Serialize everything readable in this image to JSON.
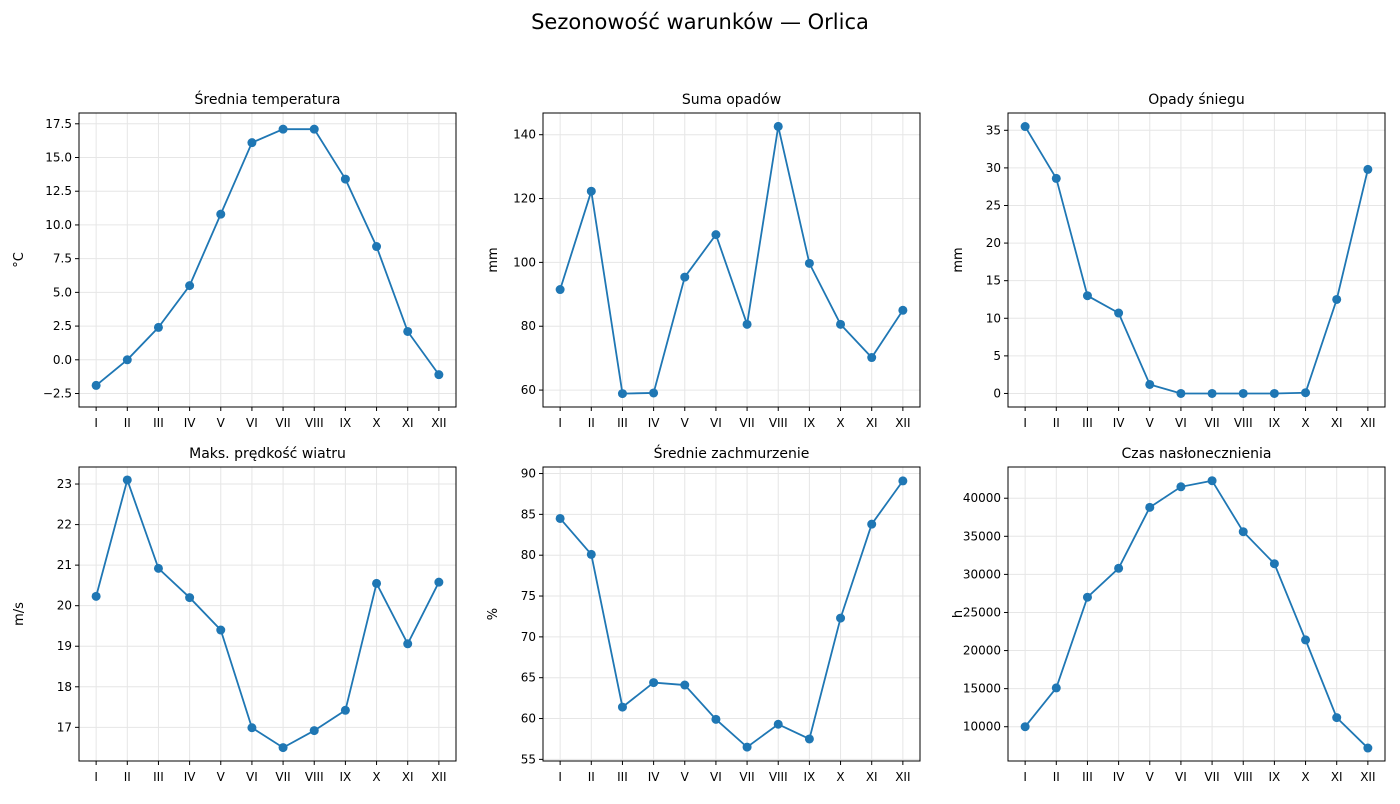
{
  "figure": {
    "title": "Sezonowość warunków — Orlica"
  },
  "colors": {
    "series": "#1f77b4",
    "grid": "#e6e6e6",
    "axis": "#000000"
  },
  "chart_data": [
    {
      "type": "line",
      "title": "Średnia temperatura",
      "xlabel": "",
      "ylabel": "°C",
      "categories": [
        "I",
        "II",
        "III",
        "IV",
        "V",
        "VI",
        "VII",
        "VIII",
        "IX",
        "X",
        "XI",
        "XII"
      ],
      "values": [
        -1.9,
        0.0,
        2.4,
        5.5,
        10.8,
        16.1,
        17.1,
        17.1,
        13.4,
        8.4,
        2.1,
        -1.1
      ],
      "ylim": [
        -3.5,
        18.3
      ],
      "yticks": [
        -2.5,
        0.0,
        2.5,
        5.0,
        7.5,
        10.0,
        12.5,
        15.0,
        17.5
      ],
      "ytick_labels": [
        "−2.5",
        "0.0",
        "2.5",
        "5.0",
        "7.5",
        "10.0",
        "12.5",
        "15.0",
        "17.5"
      ],
      "grid": true
    },
    {
      "type": "line",
      "title": "Suma opadów",
      "xlabel": "",
      "ylabel": "mm",
      "categories": [
        "I",
        "II",
        "III",
        "IV",
        "V",
        "VI",
        "VII",
        "VIII",
        "IX",
        "X",
        "XI",
        "XII"
      ],
      "values": [
        91.5,
        122.3,
        58.9,
        59.1,
        95.4,
        108.7,
        80.6,
        142.6,
        99.7,
        80.6,
        70.2,
        85.0
      ],
      "ylim": [
        54.7,
        146.8
      ],
      "yticks": [
        60,
        80,
        100,
        120,
        140
      ],
      "ytick_labels": [
        "60",
        "80",
        "100",
        "120",
        "140"
      ],
      "grid": true
    },
    {
      "type": "line",
      "title": "Opady śniegu",
      "xlabel": "",
      "ylabel": "mm",
      "categories": [
        "I",
        "II",
        "III",
        "IV",
        "V",
        "VI",
        "VII",
        "VIII",
        "IX",
        "X",
        "XI",
        "XII"
      ],
      "values": [
        35.5,
        28.6,
        13.0,
        10.7,
        1.2,
        0.0,
        0.0,
        0.0,
        0.0,
        0.1,
        12.5,
        29.8
      ],
      "ylim": [
        -1.8,
        37.3
      ],
      "yticks": [
        0,
        5,
        10,
        15,
        20,
        25,
        30,
        35
      ],
      "ytick_labels": [
        "0",
        "5",
        "10",
        "15",
        "20",
        "25",
        "30",
        "35"
      ],
      "grid": true
    },
    {
      "type": "line",
      "title": "Maks. prędkość wiatru",
      "xlabel": "",
      "ylabel": "m/s",
      "categories": [
        "I",
        "II",
        "III",
        "IV",
        "V",
        "VI",
        "VII",
        "VIII",
        "IX",
        "X",
        "XI",
        "XII"
      ],
      "values": [
        20.23,
        23.1,
        20.92,
        20.2,
        19.4,
        16.99,
        16.5,
        16.92,
        17.42,
        20.55,
        19.06,
        20.58
      ],
      "ylim": [
        16.17,
        23.42
      ],
      "yticks": [
        17,
        18,
        19,
        20,
        21,
        22,
        23
      ],
      "ytick_labels": [
        "17",
        "18",
        "19",
        "20",
        "21",
        "22",
        "23"
      ],
      "grid": true
    },
    {
      "type": "line",
      "title": "Średnie zachmurzenie",
      "xlabel": "",
      "ylabel": "%",
      "categories": [
        "I",
        "II",
        "III",
        "IV",
        "V",
        "VI",
        "VII",
        "VIII",
        "IX",
        "X",
        "XI",
        "XII"
      ],
      "values": [
        84.5,
        80.1,
        61.4,
        64.4,
        64.1,
        59.9,
        56.5,
        59.3,
        57.5,
        72.3,
        83.8,
        89.1
      ],
      "ylim": [
        54.8,
        90.8
      ],
      "yticks": [
        55,
        60,
        65,
        70,
        75,
        80,
        85,
        90
      ],
      "ytick_labels": [
        "55",
        "60",
        "65",
        "70",
        "75",
        "80",
        "85",
        "90"
      ],
      "grid": true
    },
    {
      "type": "line",
      "title": "Czas nasłonecznienia",
      "xlabel": "",
      "ylabel": "h",
      "categories": [
        "I",
        "II",
        "III",
        "IV",
        "V",
        "VI",
        "VII",
        "VIII",
        "IX",
        "X",
        "XI",
        "XII"
      ],
      "values": [
        10000,
        15100,
        27000,
        30800,
        38800,
        41500,
        42300,
        35600,
        31400,
        21400,
        11200,
        7200
      ],
      "ylim": [
        5500,
        44100
      ],
      "yticks": [
        10000,
        15000,
        20000,
        25000,
        30000,
        35000,
        40000
      ],
      "ytick_labels": [
        "10000",
        "15000",
        "20000",
        "25000",
        "30000",
        "35000",
        "40000"
      ],
      "grid": true
    }
  ]
}
